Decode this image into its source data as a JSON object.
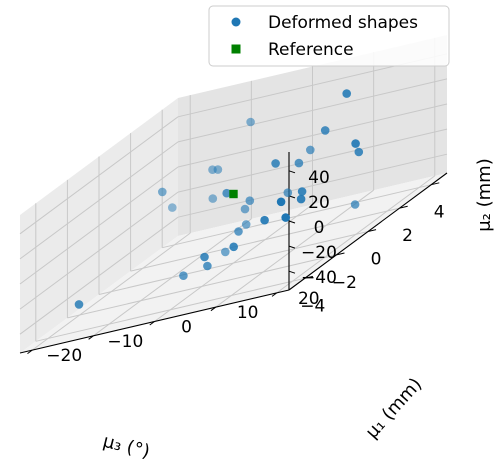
{
  "chart_data": {
    "type": "scatter",
    "projection": "3d",
    "grid": true,
    "legend_placement": "top-right",
    "axes": {
      "x": {
        "label": "μ₃ (°)",
        "range": [
          -5,
          5
        ],
        "ticks": [
          -4,
          -2,
          0,
          2,
          4
        ],
        "tick_labels": [
          "−4",
          "−2",
          "0",
          "2",
          "4"
        ]
      },
      "y": {
        "label": "μ₁ (mm)",
        "range": [
          -22,
          22
        ],
        "ticks": [
          -20,
          -10,
          0,
          10,
          20
        ],
        "tick_labels": [
          "−20",
          "−10",
          "0",
          "10",
          "20"
        ]
      },
      "z": {
        "label": "μ₂ (mm)",
        "range": [
          -55,
          55
        ],
        "ticks": [
          -40,
          -20,
          0,
          20,
          40
        ],
        "tick_labels": [
          "−40",
          "−20",
          "0",
          "20",
          "40"
        ]
      }
    },
    "series": [
      {
        "name": "Deformed shapes",
        "marker": "circle",
        "color": "#1f77b4",
        "points": [
          {
            "x": -4.9,
            "y": 21.2,
            "z": 2.7
          },
          {
            "x": -4.3,
            "y": 18.9,
            "z": 12.3
          },
          {
            "x": -4.9,
            "y": -12.6,
            "z": -27.9
          },
          {
            "x": -2.5,
            "y": 6.5,
            "z": -26.2
          },
          {
            "x": -2.3,
            "y": 1.2,
            "z": -30.1
          },
          {
            "x": -2.6,
            "y": 11.8,
            "z": -10.1
          },
          {
            "x": 0.2,
            "y": 18.0,
            "z": 57.6
          },
          {
            "x": -0.4,
            "y": 21.0,
            "z": 19.9
          },
          {
            "x": 1.2,
            "y": 17.4,
            "z": 2.4
          },
          {
            "x": -1.6,
            "y": 15.2,
            "z": -6.5
          },
          {
            "x": -1.0,
            "y": 13.8,
            "z": -4.4
          },
          {
            "x": -0.2,
            "y": 7.4,
            "z": 17.8
          },
          {
            "x": -0.5,
            "y": -6.9,
            "z": -52.6
          },
          {
            "x": -0.8,
            "y": -2.2,
            "z": -47.4
          },
          {
            "x": -0.2,
            "y": -0.6,
            "z": 3.2
          },
          {
            "x": 0.9,
            "y": -1.5,
            "z": -36.6
          },
          {
            "x": 1.7,
            "y": 6.3,
            "z": 1.6
          },
          {
            "x": 1.8,
            "y": -16.3,
            "z": 3.5
          },
          {
            "x": 2.5,
            "y": -3.8,
            "z": -24.3
          },
          {
            "x": 3.7,
            "y": 3.0,
            "z": -2.8
          },
          {
            "x": 4.8,
            "y": -9.6,
            "z": 23.6
          },
          {
            "x": 4.2,
            "y": -13.4,
            "z": -4.4
          },
          {
            "x": 3.4,
            "y": -6.9,
            "z": -35.9
          },
          {
            "x": 4.1,
            "y": -20.6,
            "z": -25.6
          },
          {
            "x": 3.2,
            "y": -6.2,
            "z": -47.0
          },
          {
            "x": 4.3,
            "y": -14.5,
            "z": -27.2
          },
          {
            "x": 4.1,
            "y": 9.3,
            "z": -57.2
          },
          {
            "x": 4.4,
            "y": -14.8,
            "z": -4.8
          },
          {
            "x": 1.2,
            "y": 11.9,
            "z": 25.9
          },
          {
            "x": 2.7,
            "y": 1.9,
            "z": -26.3
          },
          {
            "x": 2.5,
            "y": -7.8,
            "z": -60.6
          }
        ]
      },
      {
        "name": "Reference",
        "marker": "square",
        "color": "#008000",
        "points": [
          {
            "x": 0,
            "y": 0,
            "z": 0
          }
        ]
      }
    ]
  }
}
